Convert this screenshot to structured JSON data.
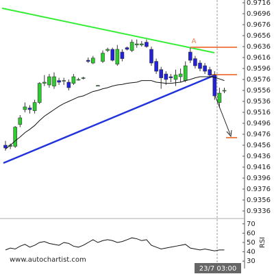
{
  "chart_data": {
    "type": "candlestick",
    "categories": [
      null,
      null,
      null,
      null,
      null,
      null,
      null,
      null,
      null,
      null,
      null,
      null,
      null,
      null,
      null,
      null,
      null,
      null,
      null,
      null,
      null,
      null,
      null,
      null,
      null,
      null,
      null,
      null,
      null,
      null,
      null,
      null,
      null,
      null,
      null,
      null,
      null,
      null,
      null,
      null,
      null,
      null,
      null,
      null,
      null,
      null
    ],
    "open": [
      0.9456,
      0.9454,
      0.9454,
      0.9494,
      0.9521,
      0.9524,
      0.9519,
      0.9534,
      0.9569,
      0.9566,
      0.9564,
      0.9574,
      0.9574,
      0.9571,
      0.9569,
      0.9576,
      0.9579,
      0.9611,
      0.9606,
      0.9565,
      0.9609,
      0.9629,
      0.9631,
      0.9604,
      0.9626,
      0.9634,
      0.9629,
      0.9639,
      0.9639,
      0.9644,
      0.9631,
      0.9609,
      0.9594,
      0.9586,
      0.9581,
      0.9576,
      0.9581,
      0.9574,
      0.9626,
      0.9614,
      0.9606,
      0.9601,
      0.9594,
      0.9584,
      0.9534,
      0.9556
    ],
    "high": [
      0.9464,
      0.9459,
      0.9491,
      0.9511,
      0.9534,
      0.9529,
      0.9539,
      0.9571,
      0.9584,
      0.9586,
      0.9589,
      0.9579,
      0.9579,
      0.9576,
      0.9586,
      0.9579,
      0.9581,
      0.9616,
      0.9619,
      0.9566,
      0.9629,
      0.9634,
      0.9634,
      0.9639,
      0.9631,
      0.9636,
      0.9649,
      0.9649,
      0.9646,
      0.9649,
      0.9636,
      0.9614,
      0.9599,
      0.9591,
      0.9586,
      0.9594,
      0.9596,
      0.9609,
      0.9634,
      0.9619,
      0.9611,
      0.9606,
      0.9599,
      0.9591,
      0.9561,
      0.9561
    ],
    "low": [
      0.9446,
      0.9449,
      0.9451,
      0.9489,
      0.9516,
      0.9514,
      0.9514,
      0.9531,
      0.9564,
      0.9561,
      0.9559,
      0.9566,
      0.9566,
      0.9556,
      0.9566,
      0.9574,
      0.9576,
      0.9606,
      0.9604,
      0.9564,
      0.9606,
      0.9626,
      0.9609,
      0.9601,
      0.9609,
      0.9629,
      0.9626,
      0.9634,
      0.9636,
      0.9634,
      0.9601,
      0.9586,
      0.9559,
      0.9566,
      0.9571,
      0.9564,
      0.9571,
      0.9571,
      0.9606,
      0.9596,
      0.9591,
      0.9586,
      0.9579,
      0.9539,
      0.9524,
      0.9551
    ],
    "close": [
      0.9451,
      0.9456,
      0.9489,
      0.9506,
      0.9526,
      0.9521,
      0.9534,
      0.9569,
      0.9571,
      0.9581,
      0.9581,
      0.9571,
      0.9574,
      0.9561,
      0.9581,
      0.9576,
      0.9579,
      0.9609,
      0.9615,
      0.9565,
      0.9624,
      0.9631,
      0.9611,
      0.9631,
      0.9614,
      0.9631,
      0.9644,
      0.9641,
      0.9641,
      0.9636,
      0.9606,
      0.9591,
      0.9579,
      0.9576,
      0.9579,
      0.9584,
      0.9586,
      0.9601,
      0.9611,
      0.9601,
      0.9596,
      0.9591,
      0.9584,
      0.9546,
      0.9551,
      0.9556
    ],
    "moving_average": [
      0.9449,
      0.9456,
      0.9464,
      0.9471,
      0.9479,
      0.9485,
      0.9492,
      0.9501,
      0.9509,
      0.9515,
      0.9521,
      0.9527,
      0.9532,
      0.9536,
      0.954,
      0.9544,
      0.9546,
      0.955,
      0.9554,
      0.9556,
      0.9559,
      0.9561,
      0.9564,
      0.9566,
      0.9567,
      0.9569,
      0.957,
      0.9571,
      0.9574,
      0.9574,
      0.9574,
      0.9571,
      0.957,
      0.9569,
      0.9569,
      0.957,
      0.9571,
      0.9574,
      0.9576,
      0.9579,
      0.9581,
      0.9581,
      0.9581,
      0.958,
      0.9577,
      0.9574
    ],
    "up_color": "#2ecc2e",
    "down_color": "#2222dd",
    "ma_color": "#111111",
    "ylim": [
      0.93235,
      0.9721
    ],
    "yticks": [
      0.9716,
      0.9696,
      0.9676,
      0.9656,
      0.9636,
      0.9616,
      0.9596,
      0.9576,
      0.9556,
      0.9536,
      0.9516,
      0.9496,
      0.9476,
      0.9456,
      0.9436,
      0.9416,
      0.9396,
      0.9376,
      0.9356,
      0.9336
    ],
    "pattern_label": "A",
    "time_label": "23/7 03:00",
    "watermark": "www.autochartist.com",
    "rsi": {
      "label": "RSI",
      "color": "#111111",
      "values": [
        42,
        44,
        43,
        46,
        48,
        45,
        47,
        50,
        51,
        49,
        48,
        47,
        50,
        49,
        46,
        45,
        47,
        50,
        53,
        50,
        52,
        53,
        52,
        50,
        51,
        53,
        55,
        54,
        52,
        53,
        47,
        45,
        43,
        44,
        45,
        46,
        47,
        48,
        44,
        43,
        42,
        43,
        42,
        41,
        42,
        42
      ],
      "ylim": [
        25,
        75
      ],
      "yticks": [
        70,
        60,
        50,
        40,
        30
      ]
    }
  }
}
